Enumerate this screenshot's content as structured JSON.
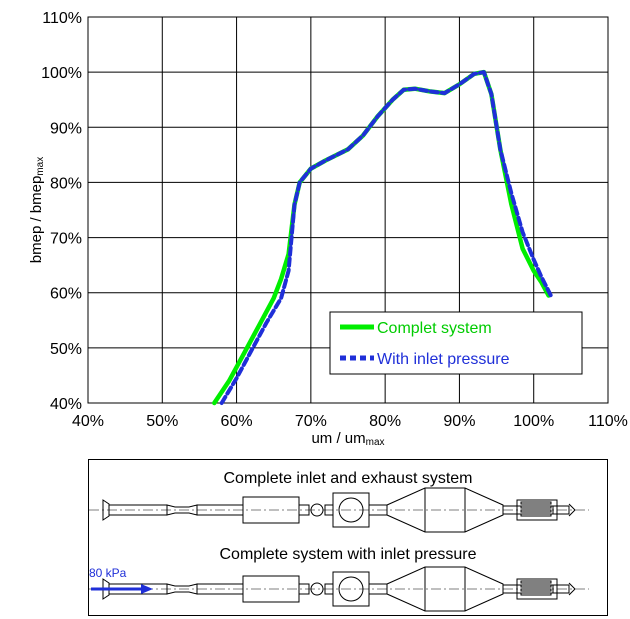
{
  "chart_data": {
    "type": "line",
    "xlabel": {
      "main": "um / um",
      "sub": "max"
    },
    "ylabel": {
      "main": "bmep / bmep",
      "sub": "max"
    },
    "xlim": [
      40,
      110
    ],
    "ylim": [
      40,
      110
    ],
    "x_ticks": [
      "40%",
      "50%",
      "60%",
      "70%",
      "80%",
      "90%",
      "100%",
      "110%"
    ],
    "y_ticks": [
      "40%",
      "50%",
      "60%",
      "70%",
      "80%",
      "90%",
      "100%",
      "110%"
    ],
    "grid": true,
    "legend_position": "bottom-right",
    "series": [
      {
        "name": "Complet system",
        "color": "#00ee00",
        "style": "solid",
        "x": [
          57,
          59,
          61,
          63,
          65,
          66,
          67,
          67.8,
          68.5,
          70,
          72,
          75,
          77,
          79,
          81,
          82.5,
          84,
          86,
          88,
          90,
          92,
          93.3,
          94.3,
          95.5,
          97,
          98.5,
          100,
          101,
          102
        ],
        "y": [
          40,
          44,
          49,
          54,
          59,
          62.5,
          67,
          76,
          80,
          82.5,
          84,
          86,
          88.5,
          92,
          95,
          96.8,
          97,
          96.5,
          96.2,
          97.8,
          99.7,
          100,
          96,
          86,
          76,
          68,
          64,
          62,
          59.5
        ]
      },
      {
        "name": "With inlet pressure",
        "color": "#1f2fd8",
        "style": "dashed",
        "x": [
          58,
          60,
          62,
          64,
          66,
          67,
          67.8,
          68.5,
          70,
          72,
          75,
          77,
          79,
          81,
          82.5,
          84,
          86,
          88,
          90,
          92,
          93.3,
          94.3,
          95.5,
          97,
          98.5,
          100,
          101,
          102.3
        ],
        "y": [
          40,
          44.5,
          49.5,
          54.5,
          59,
          64,
          76,
          80,
          82.5,
          84,
          86,
          88.5,
          92,
          95,
          96.8,
          97,
          96.5,
          96.2,
          97.8,
          99.7,
          100,
          96,
          86,
          78,
          71,
          66,
          63,
          59.5
        ]
      }
    ]
  },
  "schematic": {
    "title_top": "Complete inlet and exhaust system",
    "title_bottom": "Complete system with inlet pressure",
    "pressure_label": "80 kPa",
    "arrow_color": "#1f2fd8"
  }
}
